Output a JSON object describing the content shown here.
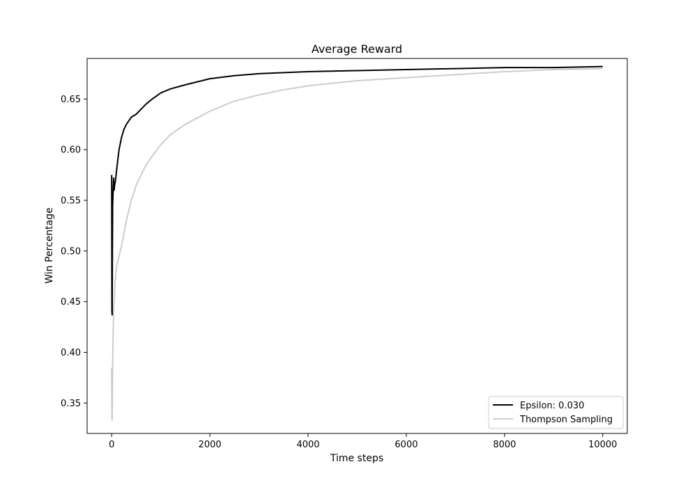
{
  "chart_data": {
    "type": "line",
    "title": "Average Reward",
    "xlabel": "Time steps",
    "ylabel": "Win Percentage",
    "xlim": [
      -500,
      10500
    ],
    "ylim": [
      0.32,
      0.69
    ],
    "xticks": [
      0,
      2000,
      4000,
      6000,
      8000,
      10000
    ],
    "yticks": [
      0.35,
      0.4,
      0.45,
      0.5,
      0.55,
      0.6,
      0.65
    ],
    "xtick_labels": [
      "0",
      "2000",
      "4000",
      "6000",
      "8000",
      "10000"
    ],
    "ytick_labels": [
      "0.35",
      "0.40",
      "0.45",
      "0.50",
      "0.55",
      "0.60",
      "0.65"
    ],
    "grid": false,
    "legend_position": "lower-right",
    "series": [
      {
        "name": "Epsilon: 0.030",
        "color": "#000000",
        "points": [
          [
            0,
            0.575
          ],
          [
            5,
            0.44
          ],
          [
            10,
            0.437
          ],
          [
            15,
            0.5
          ],
          [
            20,
            0.545
          ],
          [
            30,
            0.56
          ],
          [
            40,
            0.572
          ],
          [
            50,
            0.56
          ],
          [
            60,
            0.565
          ],
          [
            80,
            0.57
          ],
          [
            100,
            0.58
          ],
          [
            150,
            0.6
          ],
          [
            200,
            0.612
          ],
          [
            250,
            0.62
          ],
          [
            300,
            0.625
          ],
          [
            400,
            0.632
          ],
          [
            500,
            0.635
          ],
          [
            600,
            0.64
          ],
          [
            700,
            0.645
          ],
          [
            800,
            0.649
          ],
          [
            1000,
            0.656
          ],
          [
            1200,
            0.66
          ],
          [
            1500,
            0.664
          ],
          [
            2000,
            0.67
          ],
          [
            2500,
            0.673
          ],
          [
            3000,
            0.675
          ],
          [
            3500,
            0.676
          ],
          [
            4000,
            0.677
          ],
          [
            5000,
            0.678
          ],
          [
            6000,
            0.679
          ],
          [
            7000,
            0.68
          ],
          [
            8000,
            0.681
          ],
          [
            9000,
            0.681
          ],
          [
            10000,
            0.682
          ]
        ]
      },
      {
        "name": "Thompson Sampling",
        "color": "#cccccc",
        "points": [
          [
            0,
            0.385
          ],
          [
            5,
            0.335
          ],
          [
            10,
            0.333
          ],
          [
            20,
            0.39
          ],
          [
            30,
            0.42
          ],
          [
            40,
            0.44
          ],
          [
            50,
            0.45
          ],
          [
            70,
            0.47
          ],
          [
            100,
            0.485
          ],
          [
            150,
            0.495
          ],
          [
            200,
            0.505
          ],
          [
            300,
            0.53
          ],
          [
            400,
            0.55
          ],
          [
            500,
            0.565
          ],
          [
            600,
            0.575
          ],
          [
            700,
            0.585
          ],
          [
            800,
            0.592
          ],
          [
            1000,
            0.605
          ],
          [
            1200,
            0.615
          ],
          [
            1500,
            0.625
          ],
          [
            2000,
            0.638
          ],
          [
            2500,
            0.648
          ],
          [
            3000,
            0.654
          ],
          [
            3500,
            0.659
          ],
          [
            4000,
            0.663
          ],
          [
            5000,
            0.668
          ],
          [
            6000,
            0.671
          ],
          [
            7000,
            0.674
          ],
          [
            8000,
            0.677
          ],
          [
            9000,
            0.679
          ],
          [
            10000,
            0.68
          ]
        ]
      }
    ]
  }
}
